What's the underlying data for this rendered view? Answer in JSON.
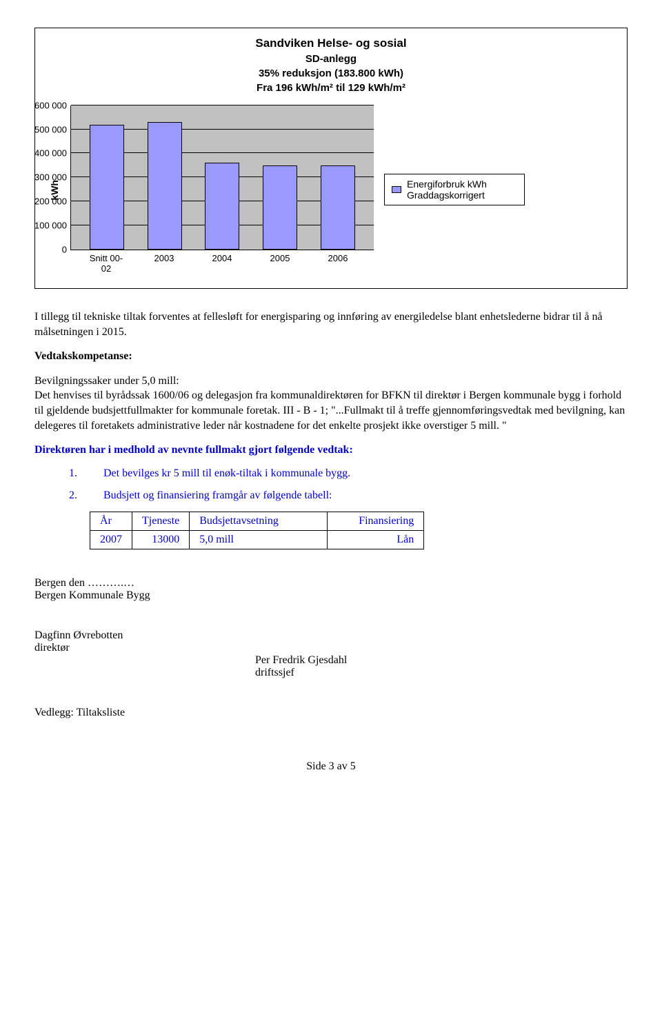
{
  "chart": {
    "title_main": "Sandviken Helse- og sosial",
    "title_sub1": "SD-anlegg",
    "title_sub2": "35% reduksjon (183.800 kWh)",
    "title_sub3": "Fra 196 kWh/m² til 129 kWh/m²",
    "ylabel": "kWh",
    "ylim_max": 600000,
    "ytick_step": 100000,
    "yticks": [
      "0",
      "100 000",
      "200 000",
      "300 000",
      "400 000",
      "500 000",
      "600 000"
    ],
    "categories": [
      "Snitt 00-02",
      "2003",
      "2004",
      "2005",
      "2006"
    ],
    "values": [
      520000,
      530000,
      360000,
      350000,
      350000
    ],
    "bar_color": "#9999ff",
    "plot_bg": "#c0c0c0",
    "grid_color": "#000000",
    "legend_label": "Energiforbruk kWh Graddagskorrigert"
  },
  "body": {
    "para1": "I tillegg til tekniske tiltak forventes at fellesløft for energisparing og innføring av energiledelse blant enhetslederne bidrar til å nå målsetningen i 2015.",
    "heading1": "Vedtakskompetanse:",
    "para2a": "Bevilgningssaker under 5,0 mill:",
    "para2b": "Det henvises til byrådssak 1600/06 og delegasjon fra kommunaldirektøren for BFKN til direktør i Bergen kommunale bygg i forhold til gjeldende budsjettfullmakter for kommunale foretak. III - B - 1; \"...Fullmakt til å treffe gjennomføringsvedtak med bevilgning, kan delegeres til foretakets administrative leder når kostnadene for det enkelte prosjekt ikke overstiger 5 mill. \"",
    "heading2": "Direktøren har i medhold av nevnte fullmakt gjort følgende vedtak:",
    "item1_num": "1.",
    "item1_text": "Det bevilges kr 5 mill til enøk-tiltak i kommunale bygg.",
    "item2_num": "2.",
    "item2_text": "Budsjett og finansiering framgår av følgende tabell:"
  },
  "table": {
    "headers": [
      "År",
      "Tjeneste",
      "Budsjettavsetning",
      "Finansiering"
    ],
    "row": [
      "2007",
      "13000",
      "5,0 mill",
      "Lån"
    ]
  },
  "signatures": {
    "line1": "Bergen den ……….…",
    "line2": "Bergen Kommunale Bygg",
    "sig1_name": "Dagfinn Øvrebotten",
    "sig1_title": "direktør",
    "sig2_name": "Per Fredrik Gjesdahl",
    "sig2_title": "driftssjef",
    "attachment": "Vedlegg: Tiltaksliste"
  },
  "footer": "Side 3 av 5"
}
